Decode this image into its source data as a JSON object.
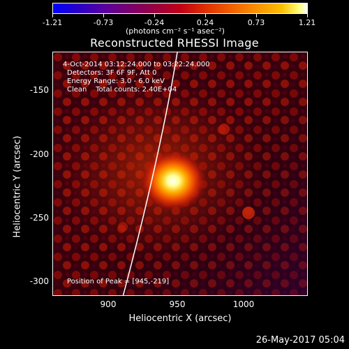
{
  "colorbar": {
    "tick_labels": [
      "-1.21",
      "-0.73",
      "-0.24",
      "0.24",
      "0.73",
      "1.21"
    ],
    "units": "(photons cm⁻² s⁻¹ asec⁻²)"
  },
  "title": "Reconstructed RHESSI Image",
  "annotations": {
    "time_range": "4-Oct-2014 03:12:24.000 to 03:22:24.000",
    "detectors": "Detectors: 3F 6F 9F, Att 0",
    "energy": "Energy Range: 3.0 - 6.0 keV",
    "clean": "Clean    Total counts: 2.40E+04",
    "peak": "Position of Peak = [945,-219]"
  },
  "axes": {
    "xlabel": "Heliocentric X (arcsec)",
    "ylabel": "Heliocentric Y (arcsec)",
    "xticks": [
      "900",
      "950",
      "1000"
    ],
    "yticks": [
      "-150",
      "-200",
      "-250",
      "-300"
    ],
    "xlim": [
      857,
      1042
    ],
    "ylim": [
      -313,
      -126
    ]
  },
  "footer": {
    "date": "26-May-2017 05:04"
  }
}
